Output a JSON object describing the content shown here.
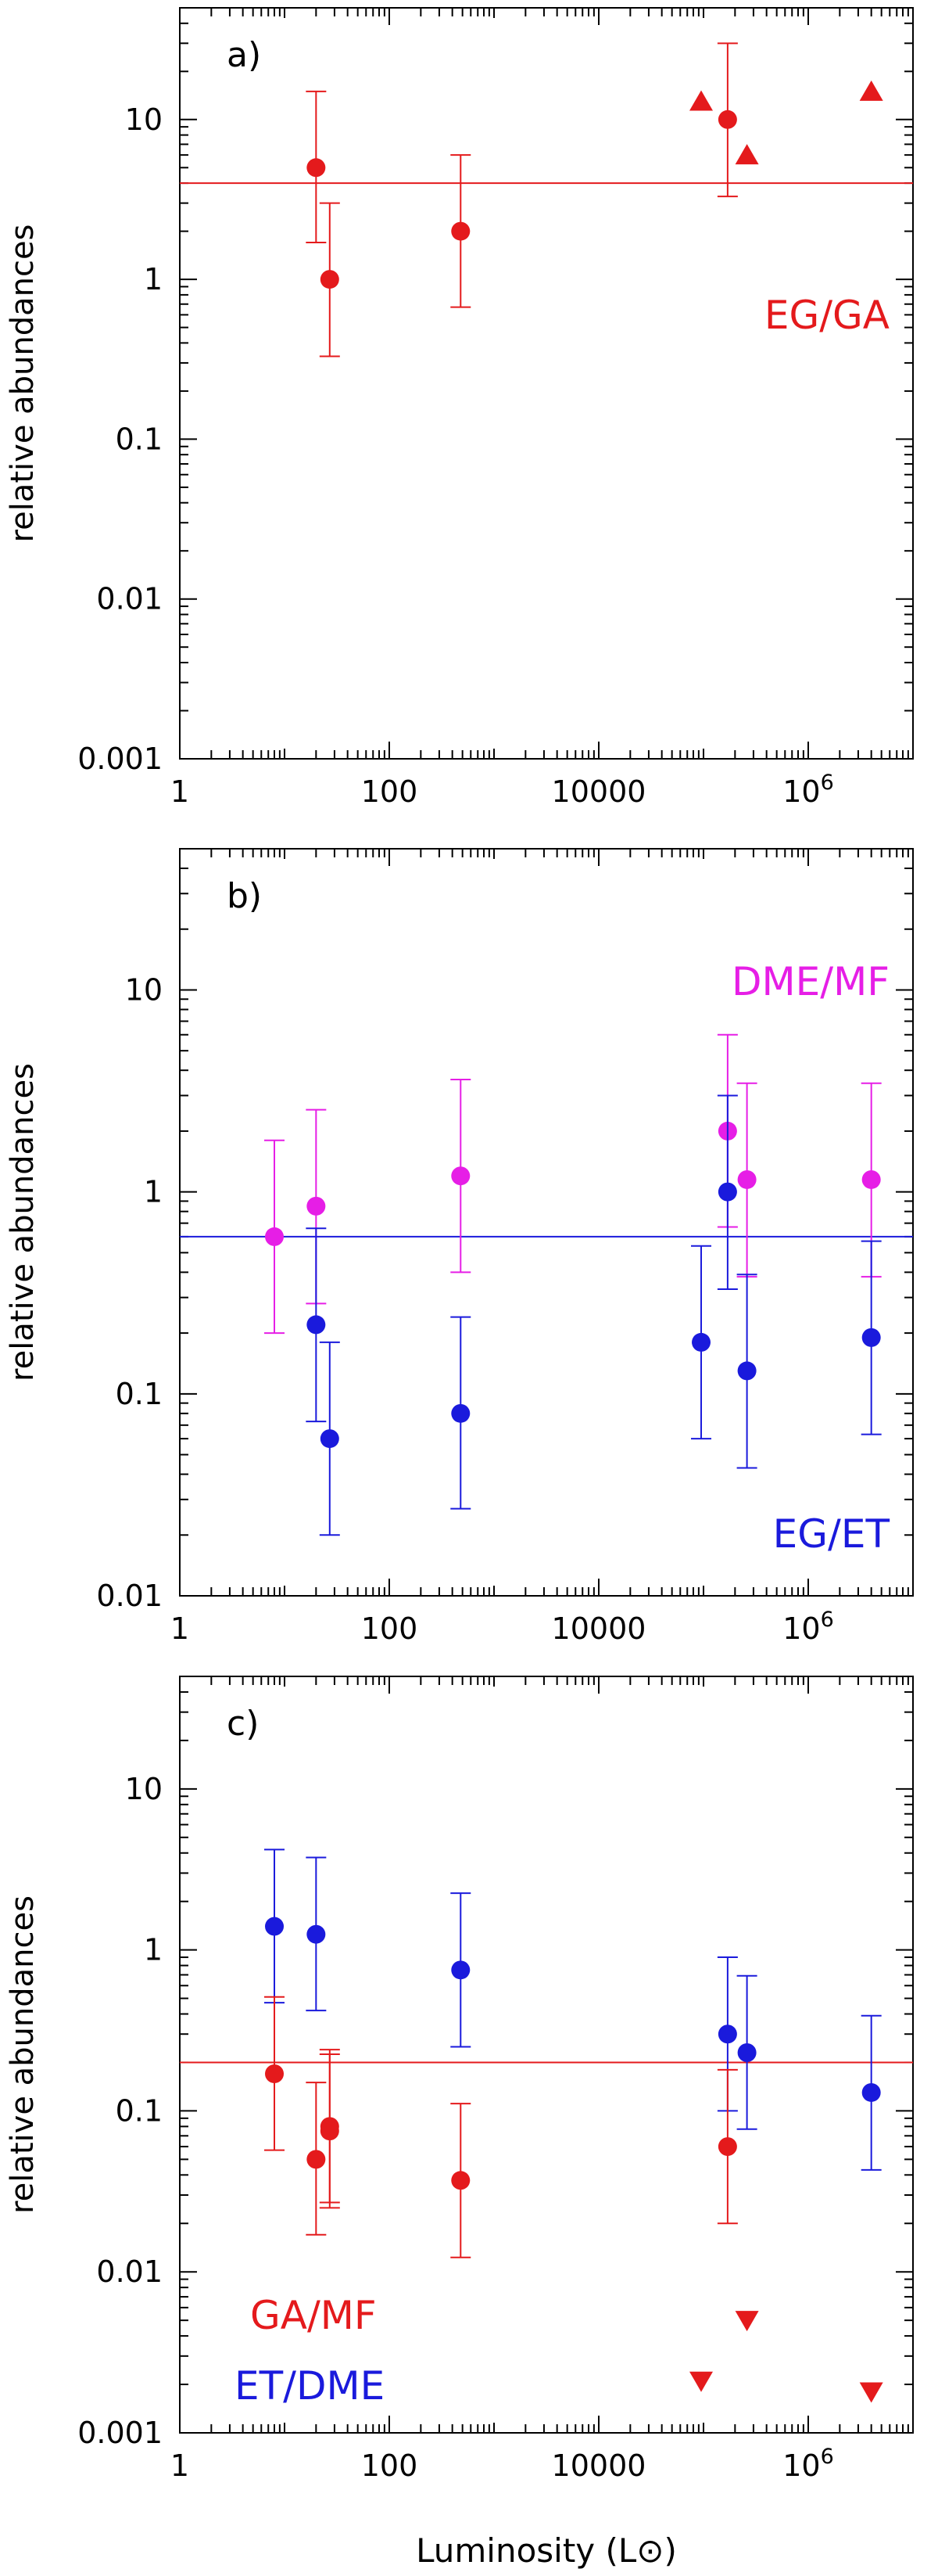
{
  "chart_data": [
    {
      "type": "scatter",
      "panel_label": "a)",
      "ylabel": "relative abundances",
      "xlabel": "",
      "xscale": "log",
      "yscale": "log",
      "xlim": [
        1,
        10000000
      ],
      "ylim": [
        0.001,
        50
      ],
      "xticks": [
        "1",
        "100",
        "10000",
        "10^6"
      ],
      "yticks": [
        "0.001",
        "0.01",
        "0.1",
        "1",
        "10"
      ],
      "reference_lines": [
        {
          "y": 4.0,
          "color": "#e41a1c"
        }
      ],
      "annotations": [
        {
          "text": "EG/GA",
          "color": "#e41a1c"
        }
      ],
      "series": [
        {
          "color": "#e41a1c",
          "marker": "circle",
          "points": [
            {
              "x": 20,
              "y": 5,
              "ylo": 1.7,
              "yhi": 15
            },
            {
              "x": 27,
              "y": 1,
              "ylo": 0.33,
              "yhi": 3
            },
            {
              "x": 480,
              "y": 2,
              "ylo": 0.67,
              "yhi": 6
            },
            {
              "x": 170000,
              "y": 10,
              "ylo": 3.3,
              "yhi": 30
            }
          ]
        },
        {
          "color": "#e41a1c",
          "marker": "triangle-up",
          "points": [
            {
              "x": 95000,
              "y": 13
            },
            {
              "x": 260000,
              "y": 6
            },
            {
              "x": 4000000,
              "y": 15
            }
          ]
        }
      ]
    },
    {
      "type": "scatter",
      "panel_label": "b)",
      "ylabel": "relative abundances",
      "xlabel": "",
      "xscale": "log",
      "yscale": "log",
      "xlim": [
        1,
        10000000
      ],
      "ylim": [
        0.01,
        50
      ],
      "xticks": [
        "1",
        "100",
        "10000",
        "10^6"
      ],
      "yticks": [
        "0.01",
        "0.1",
        "1",
        "10"
      ],
      "reference_lines": [
        {
          "y": 0.6,
          "color": "#1a1adc"
        }
      ],
      "annotations": [
        {
          "text": "DME/MF",
          "color": "#e61ee6"
        },
        {
          "text": "EG/ET",
          "color": "#1a1adc"
        }
      ],
      "series": [
        {
          "color": "#e61ee6",
          "marker": "circle",
          "points": [
            {
              "x": 8,
              "y": 0.6,
              "ylo": 0.2,
              "yhi": 1.8
            },
            {
              "x": 20,
              "y": 0.85,
              "ylo": 0.28,
              "yhi": 2.55
            },
            {
              "x": 480,
              "y": 1.2,
              "ylo": 0.4,
              "yhi": 3.6
            },
            {
              "x": 170000,
              "y": 2,
              "ylo": 0.67,
              "yhi": 6
            },
            {
              "x": 260000,
              "y": 1.15,
              "ylo": 0.38,
              "yhi": 3.45
            },
            {
              "x": 4000000,
              "y": 1.15,
              "ylo": 0.38,
              "yhi": 3.45
            }
          ]
        },
        {
          "color": "#1a1adc",
          "marker": "circle",
          "points": [
            {
              "x": 20,
              "y": 0.22,
              "ylo": 0.073,
              "yhi": 0.66
            },
            {
              "x": 27,
              "y": 0.06,
              "ylo": 0.02,
              "yhi": 0.18
            },
            {
              "x": 480,
              "y": 0.08,
              "ylo": 0.027,
              "yhi": 0.24
            },
            {
              "x": 95000,
              "y": 0.18,
              "ylo": 0.06,
              "yhi": 0.54
            },
            {
              "x": 170000,
              "y": 1,
              "ylo": 0.33,
              "yhi": 3
            },
            {
              "x": 260000,
              "y": 0.13,
              "ylo": 0.043,
              "yhi": 0.39
            },
            {
              "x": 4000000,
              "y": 0.19,
              "ylo": 0.063,
              "yhi": 0.57
            }
          ]
        }
      ]
    },
    {
      "type": "scatter",
      "panel_label": "c)",
      "ylabel": "relative abundances",
      "xlabel": "Luminosity (L⊙)",
      "xscale": "log",
      "yscale": "log",
      "xlim": [
        1,
        10000000
      ],
      "ylim": [
        0.001,
        50
      ],
      "xticks": [
        "1",
        "100",
        "10000",
        "10^6"
      ],
      "yticks": [
        "0.001",
        "0.01",
        "0.1",
        "1",
        "10"
      ],
      "reference_lines": [
        {
          "y": 0.2,
          "color": "#e41a1c"
        }
      ],
      "annotations": [
        {
          "text": "GA/MF",
          "color": "#e41a1c"
        },
        {
          "text": "ET/DME",
          "color": "#1a1adc"
        }
      ],
      "series": [
        {
          "color": "#1a1adc",
          "marker": "circle",
          "points": [
            {
              "x": 8,
              "y": 1.4,
              "ylo": 0.47,
              "yhi": 4.2
            },
            {
              "x": 20,
              "y": 1.25,
              "ylo": 0.42,
              "yhi": 3.75
            },
            {
              "x": 480,
              "y": 0.75,
              "ylo": 0.25,
              "yhi": 2.25
            },
            {
              "x": 170000,
              "y": 0.3,
              "ylo": 0.1,
              "yhi": 0.9
            },
            {
              "x": 260000,
              "y": 0.23,
              "ylo": 0.077,
              "yhi": 0.69
            },
            {
              "x": 4000000,
              "y": 0.13,
              "ylo": 0.043,
              "yhi": 0.39
            }
          ]
        },
        {
          "color": "#e41a1c",
          "marker": "circle",
          "points": [
            {
              "x": 8,
              "y": 0.17,
              "ylo": 0.057,
              "yhi": 0.51
            },
            {
              "x": 20,
              "y": 0.05,
              "ylo": 0.017,
              "yhi": 0.15
            },
            {
              "x": 27,
              "y": 0.08,
              "ylo": 0.027,
              "yhi": 0.24
            },
            {
              "x": 27,
              "y": 0.075,
              "ylo": 0.025,
              "yhi": 0.225
            },
            {
              "x": 480,
              "y": 0.037,
              "ylo": 0.0123,
              "yhi": 0.111
            },
            {
              "x": 170000,
              "y": 0.06,
              "ylo": 0.02,
              "yhi": 0.18
            }
          ]
        },
        {
          "color": "#e41a1c",
          "marker": "triangle-down",
          "points": [
            {
              "x": 95000,
              "y": 0.0021
            },
            {
              "x": 260000,
              "y": 0.005
            },
            {
              "x": 4000000,
              "y": 0.0018
            }
          ]
        }
      ]
    }
  ]
}
